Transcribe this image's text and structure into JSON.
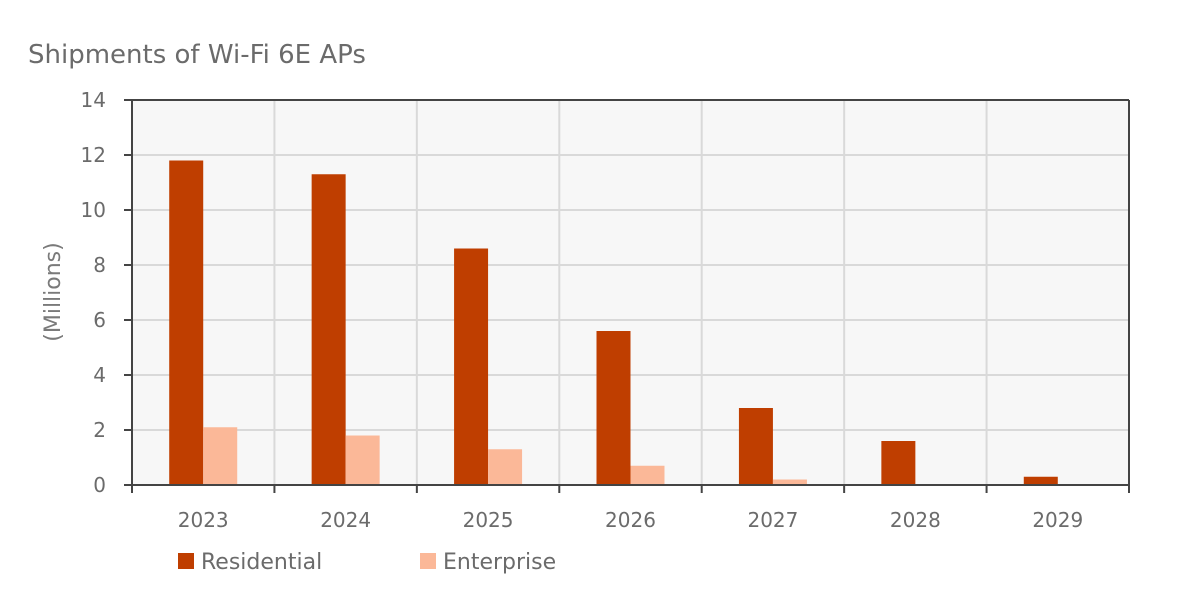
{
  "chart_data": {
    "type": "bar",
    "title": "Shipments of Wi-Fi 6E APs",
    "xlabel": "",
    "ylabel": "(Millions)",
    "ylim": [
      0,
      14
    ],
    "yticks": [
      0,
      2,
      4,
      6,
      8,
      10,
      12,
      14
    ],
    "categories": [
      "2023",
      "2024",
      "2025",
      "2026",
      "2027",
      "2028",
      "2029"
    ],
    "series": [
      {
        "name": "Residential",
        "color": "#bf3e00",
        "values": [
          11.8,
          11.3,
          8.6,
          5.6,
          2.8,
          1.6,
          0.3
        ]
      },
      {
        "name": "Enterprise",
        "color": "#fbb898",
        "values": [
          2.1,
          1.8,
          1.3,
          0.7,
          0.2,
          0,
          0
        ]
      }
    ],
    "grid": true,
    "legend": "bottom-left",
    "colors": {
      "plot_background": "#f7f7f7",
      "grid": "#d9d9d9",
      "axis": "#444444"
    }
  }
}
